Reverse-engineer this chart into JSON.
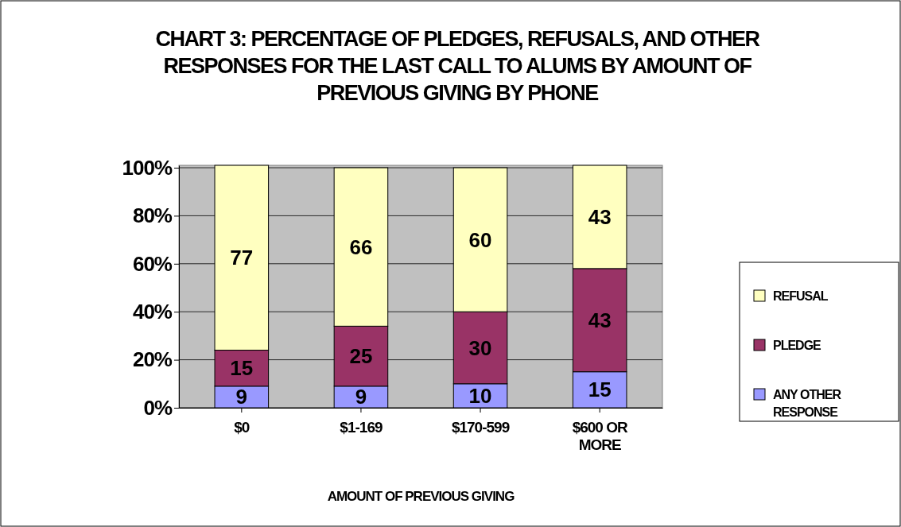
{
  "chart_data": {
    "type": "bar",
    "title": "CHART 3: PERCENTAGE OF PLEDGES, REFUSALS, AND OTHER RESPONSES FOR THE LAST CALL TO ALUMS BY AMOUNT OF PREVIOUS GIVING BY PHONE",
    "xlabel": "AMOUNT OF PREVIOUS GIVING",
    "categories": [
      "$0",
      "$1-169",
      "$170-599",
      "$600 OR MORE"
    ],
    "stacked": true,
    "data_labels": true,
    "grid": "y",
    "legend": "right",
    "ylim": [
      0,
      101
    ],
    "yticks": [
      {
        "value": 0,
        "label": "0%"
      },
      {
        "value": 20,
        "label": "20%"
      },
      {
        "value": 40,
        "label": "40%"
      },
      {
        "value": 60,
        "label": "60%"
      },
      {
        "value": 80,
        "label": "80%"
      },
      {
        "value": 100,
        "label": "100%"
      }
    ],
    "series": [
      {
        "name": "ANY OTHER RESPONSE",
        "color": "#9999ff",
        "values": [
          9,
          9,
          10,
          15
        ]
      },
      {
        "name": "PLEDGE",
        "color": "#993366",
        "values": [
          15,
          25,
          30,
          43
        ]
      },
      {
        "name": "REFUSAL",
        "color": "#ffffc0",
        "values": [
          77,
          66,
          60,
          43
        ]
      }
    ]
  }
}
